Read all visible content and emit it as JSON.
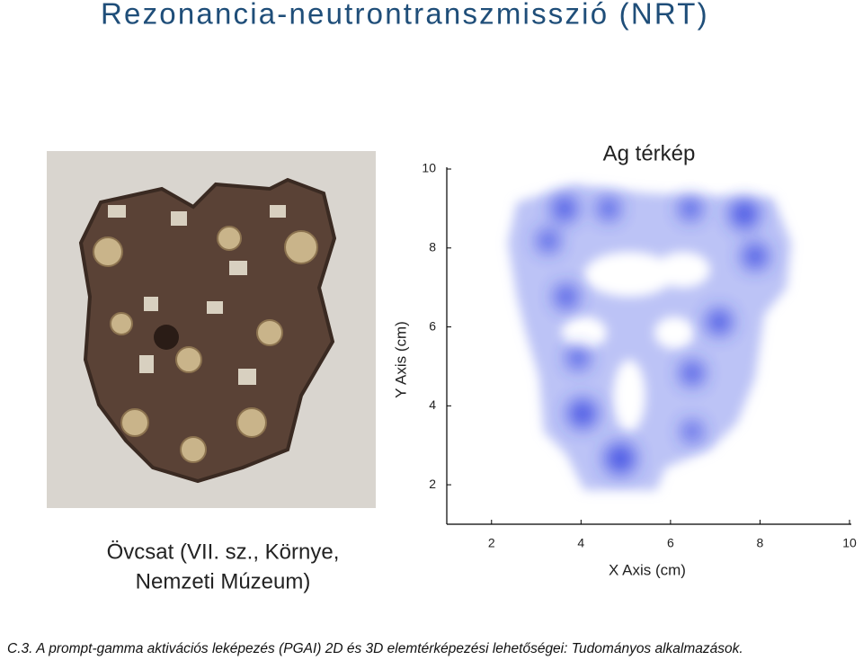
{
  "title": "Rezonancia-neutrontranszmisszió (NRT)",
  "photo_caption": [
    "Övcsat (VII. sz., Környe,",
    "Nemzeti Múzeum)"
  ],
  "map": {
    "title": "Ag térkép",
    "x_label": "X Axis (cm)",
    "y_label": "Y Axis (cm)",
    "xlim": [
      1,
      10
    ],
    "ylim": [
      1,
      10
    ],
    "xticks": [
      2,
      4,
      6,
      8,
      10
    ],
    "yticks": [
      2,
      4,
      6,
      8,
      10
    ]
  },
  "caption": "C.3. A prompt-gamma aktivációs leképezés (PGAI) 2D és 3D elemtérképezési lehetőségei: Tudományos alkalmazások."
}
